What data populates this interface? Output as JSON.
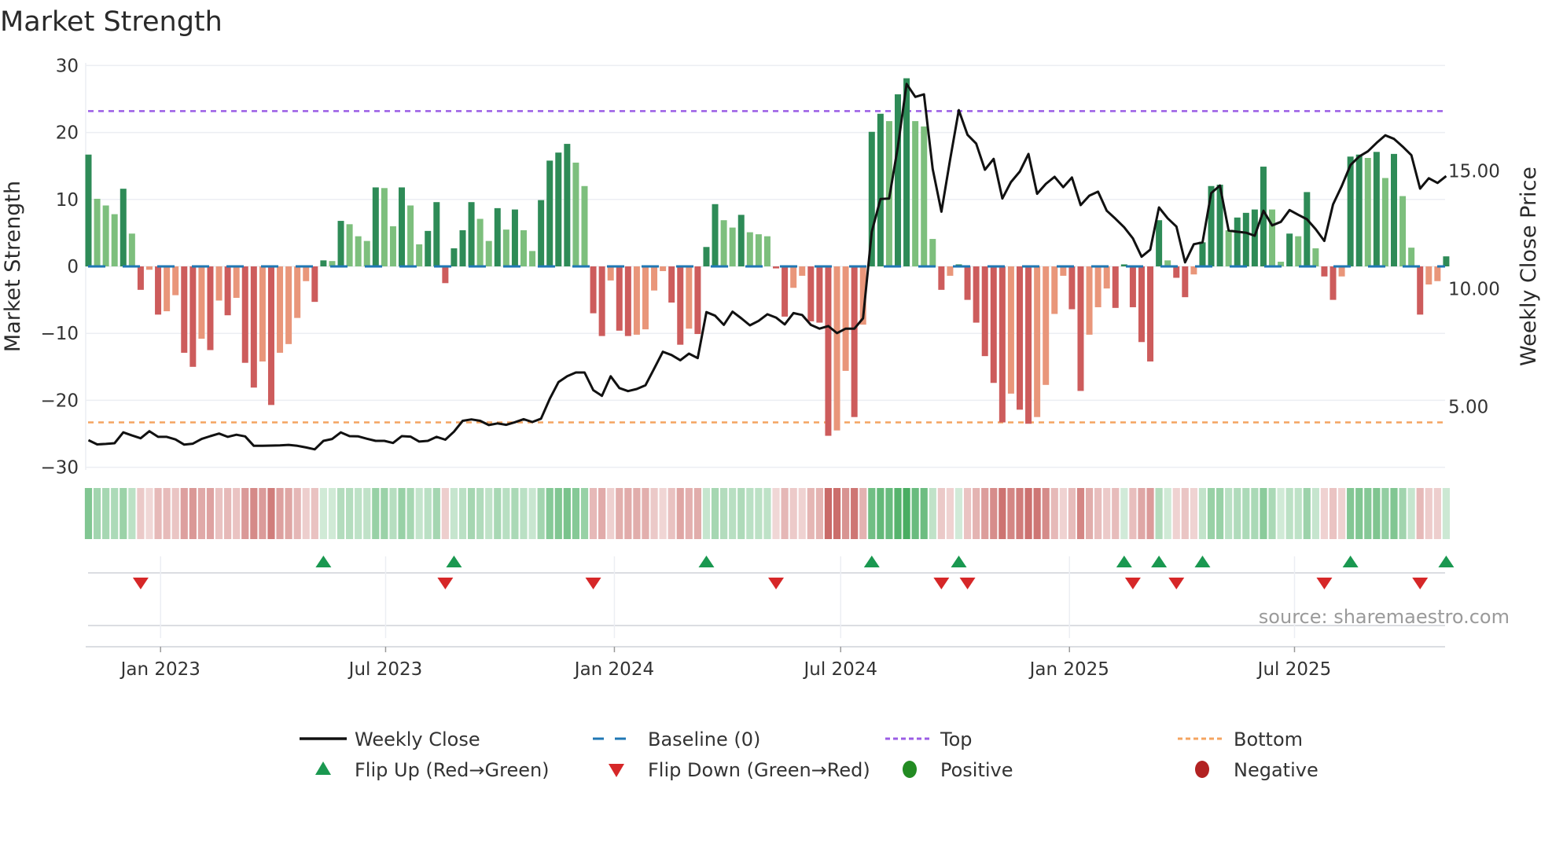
{
  "title": "Market Strength",
  "source": "source: sharemaestro.com",
  "colors": {
    "bar_pos_strong": "#2e8b57",
    "bar_pos_weak": "#7dbf7d",
    "bar_neg_strong": "#cd5c5c",
    "bar_neg_weak": "#e9967a",
    "baseline": "#1f77b4",
    "top": "#9b5de5",
    "bottom": "#f4a460",
    "close": "#111111",
    "flip_up": "#1a9850",
    "flip_down": "#d62728",
    "positive": "#228b22",
    "negative": "#b22222",
    "strip_pos": "#3aa655",
    "strip_neg": "#c0504d"
  },
  "legend": {
    "weekly_close": "Weekly Close",
    "baseline": "Baseline (0)",
    "top": "Top",
    "bottom": "Bottom",
    "flip_up": "Flip Up (Red→Green)",
    "flip_down": "Flip Down (Green→Red)",
    "positive": "Positive",
    "negative": "Negative"
  },
  "chart_data": {
    "type": "bar",
    "title": "Market Strength",
    "ylabel": "Market Strength",
    "y2label": "Weekly Close Price",
    "xlabel": "",
    "ylim": [
      -30,
      30
    ],
    "y2lim": [
      2.45,
      19.5
    ],
    "yticks": [
      30,
      20,
      10,
      0,
      -10,
      -20,
      -30
    ],
    "ytick_labels": [
      "30",
      "20",
      "10",
      "0",
      "−10",
      "−20",
      "−30"
    ],
    "y2ticks": [
      15,
      10,
      5
    ],
    "y2tick_labels": [
      "15.00",
      "10.00",
      "5.00"
    ],
    "xticks": [
      "2023-01-01",
      "2023-07-01",
      "2024-01-01",
      "2024-07-01",
      "2025-01-01",
      "2025-07-01"
    ],
    "xtick_labels": [
      "Jan 2023",
      "Jul 2023",
      "Jan 2024",
      "Jul 2024",
      "Jan 2025",
      "Jul 2025"
    ],
    "first_week": "2022-11-04",
    "frequency": "weekly",
    "grid": true,
    "legend_position": "bottom",
    "top_level": 23.2,
    "bottom_level": -23.3,
    "baseline": 0,
    "strength": [
      16.7,
      10.1,
      9.1,
      7.8,
      11.6,
      4.9,
      -3.5,
      -0.5,
      -7.2,
      -6.7,
      -4.3,
      -12.9,
      -15.0,
      -10.8,
      -12.5,
      -5.1,
      -7.3,
      -4.7,
      -14.4,
      -18.1,
      -14.2,
      -20.7,
      -12.9,
      -11.6,
      -7.7,
      -2.2,
      -5.3,
      0.9,
      0.8,
      6.8,
      6.3,
      4.5,
      3.8,
      11.8,
      11.7,
      6.0,
      11.8,
      9.1,
      3.3,
      5.3,
      9.6,
      -2.5,
      2.7,
      5.4,
      9.6,
      7.1,
      3.8,
      8.7,
      5.5,
      8.5,
      5.4,
      2.3,
      9.9,
      15.8,
      17.0,
      18.3,
      15.5,
      12.0,
      -7.0,
      -10.4,
      -2.1,
      -9.6,
      -10.4,
      -10.2,
      -9.4,
      -3.6,
      -0.7,
      -5.4,
      -11.7,
      -9.3,
      -10.1,
      2.9,
      9.3,
      6.9,
      5.8,
      7.7,
      5.1,
      4.8,
      4.5,
      -0.3,
      -7.5,
      -3.2,
      -1.4,
      -8.2,
      -8.4,
      -25.3,
      -24.5,
      -15.6,
      -22.5,
      -8.7,
      20.1,
      22.8,
      21.7,
      25.7,
      28.1,
      21.7,
      20.9,
      4.1,
      -3.5,
      -1.4,
      0.3,
      -5.0,
      -8.4,
      -13.4,
      -17.4,
      -23.3,
      -19.0,
      -21.4,
      -23.5,
      -22.5,
      -17.7,
      -7.1,
      -1.4,
      -6.4,
      -18.6,
      -10.2,
      -6.1,
      -3.3,
      -6.2,
      0.3,
      -6.1,
      -11.3,
      -14.2,
      6.9,
      0.9,
      -1.7,
      -4.6,
      -1.2,
      3.6,
      12.0,
      12.2,
      5.4,
      7.3,
      8.0,
      8.5,
      14.9,
      8.5,
      0.7,
      4.9,
      4.5,
      11.1,
      2.7,
      -1.5,
      -5.0,
      -1.5,
      16.4,
      16.7,
      16.2,
      17.1,
      13.2,
      16.8,
      10.5,
      2.8,
      -7.2,
      -2.7,
      -2.2,
      1.5
    ],
    "weekly_close": [
      3.58,
      3.4,
      3.42,
      3.45,
      3.91,
      3.78,
      3.66,
      3.96,
      3.72,
      3.72,
      3.61,
      3.39,
      3.43,
      3.63,
      3.75,
      3.86,
      3.72,
      3.81,
      3.74,
      3.34,
      3.34,
      3.35,
      3.36,
      3.38,
      3.34,
      3.27,
      3.19,
      3.55,
      3.63,
      3.91,
      3.75,
      3.74,
      3.64,
      3.55,
      3.55,
      3.46,
      3.75,
      3.73,
      3.52,
      3.55,
      3.72,
      3.6,
      3.94,
      4.4,
      4.46,
      4.4,
      4.22,
      4.29,
      4.23,
      4.34,
      4.47,
      4.35,
      4.49,
      5.33,
      6.04,
      6.29,
      6.45,
      6.45,
      5.7,
      5.46,
      6.29,
      5.79,
      5.66,
      5.75,
      5.91,
      6.62,
      7.33,
      7.19,
      6.97,
      7.25,
      7.06,
      9.01,
      8.86,
      8.47,
      9.03,
      8.75,
      8.45,
      8.64,
      8.92,
      8.78,
      8.49,
      8.97,
      8.89,
      8.47,
      8.31,
      8.42,
      8.12,
      8.31,
      8.31,
      8.75,
      12.42,
      13.81,
      13.83,
      16.03,
      18.69,
      18.14,
      18.25,
      15.08,
      13.27,
      15.47,
      17.58,
      16.53,
      16.16,
      15.05,
      15.51,
      13.83,
      14.53,
      14.97,
      15.72,
      14.03,
      14.45,
      14.75,
      14.31,
      14.72,
      13.55,
      13.95,
      14.12,
      13.31,
      12.97,
      12.61,
      12.14,
      11.36,
      11.66,
      13.45,
      12.99,
      12.64,
      11.12,
      11.89,
      11.97,
      14.06,
      14.38,
      12.47,
      12.42,
      12.38,
      12.25,
      13.31,
      12.69,
      12.84,
      13.34,
      13.14,
      12.95,
      12.53,
      12.03,
      13.58,
      14.36,
      15.25,
      15.61,
      15.83,
      16.19,
      16.51,
      16.36,
      16.03,
      15.67,
      14.25,
      14.69,
      14.49,
      14.78
    ],
    "flip_up_weeks": [
      28,
      43,
      72,
      91,
      101,
      120,
      124,
      129,
      146,
      157
    ],
    "flip_down_weeks": [
      7,
      42,
      59,
      80,
      99,
      102,
      121,
      126,
      143,
      154
    ]
  }
}
